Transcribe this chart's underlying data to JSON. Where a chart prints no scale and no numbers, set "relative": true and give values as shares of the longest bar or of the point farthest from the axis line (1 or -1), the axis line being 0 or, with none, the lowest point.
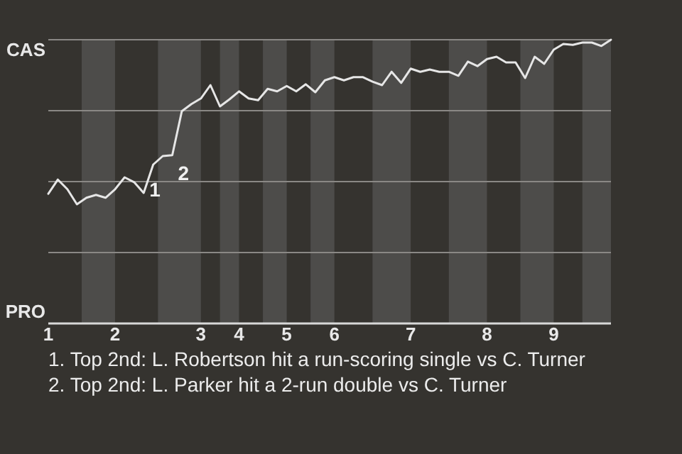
{
  "chart_data": {
    "type": "line",
    "relative": true,
    "categories": [
      "1",
      null,
      null,
      null,
      null,
      null,
      null,
      "2",
      null,
      null,
      null,
      null,
      null,
      null,
      null,
      null,
      "3",
      null,
      null,
      null,
      "4",
      null,
      null,
      null,
      null,
      "5",
      null,
      null,
      null,
      null,
      "6",
      null,
      null,
      null,
      null,
      null,
      null,
      null,
      "7",
      null,
      null,
      null,
      null,
      null,
      null,
      null,
      "8",
      null,
      null,
      null,
      null,
      null,
      null,
      "9",
      null,
      null,
      null,
      null,
      null,
      null
    ],
    "grid": "y",
    "marker": "none",
    "line_style": "solid",
    "series": [
      {
        "color": "#e6e6e6",
        "values": [
          0.457,
          0.507,
          0.473,
          0.42,
          0.443,
          0.453,
          0.443,
          0.473,
          0.515,
          0.498,
          0.46,
          0.56,
          0.59,
          0.593,
          0.748,
          0.773,
          0.793,
          0.84,
          0.765,
          0.79,
          0.818,
          0.793,
          0.787,
          0.827,
          0.818,
          0.837,
          0.818,
          0.843,
          0.815,
          0.857,
          0.868,
          0.857,
          0.868,
          0.868,
          0.852,
          0.84,
          0.887,
          0.848,
          0.898,
          0.887,
          0.895,
          0.887,
          0.887,
          0.873,
          0.923,
          0.907,
          0.932,
          0.94,
          0.92,
          0.92,
          0.865,
          0.94,
          0.915,
          0.965,
          0.985,
          0.982,
          0.99,
          0.99,
          0.978,
          1.0
        ]
      }
    ],
    "annotations": [
      "CAS",
      "PRO",
      "1",
      "2",
      "1. Top 2nd: L. Robertson hit a run-scoring single vs C. Turner",
      "2. Top 2nd: L. Parker hit a 2-run double vs C. Turner"
    ]
  }
}
